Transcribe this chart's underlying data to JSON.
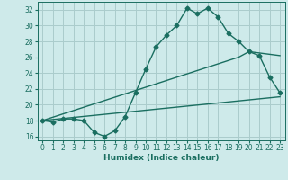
{
  "xlabel": "Humidex (Indice chaleur)",
  "bg_color": "#ceeaea",
  "grid_color": "#aacccc",
  "line_color": "#1a6e60",
  "xlim": [
    -0.5,
    23.5
  ],
  "ylim": [
    15.5,
    33.0
  ],
  "xticks": [
    0,
    1,
    2,
    3,
    4,
    5,
    6,
    7,
    8,
    9,
    10,
    11,
    12,
    13,
    14,
    15,
    16,
    17,
    18,
    19,
    20,
    21,
    22,
    23
  ],
  "yticks": [
    16,
    18,
    20,
    22,
    24,
    26,
    28,
    30,
    32
  ],
  "series1_x": [
    0,
    1,
    2,
    3,
    4,
    5,
    6,
    7,
    8,
    9,
    10,
    11,
    12,
    13,
    14,
    15,
    16,
    17,
    18,
    19,
    20,
    21,
    22,
    23
  ],
  "series1_y": [
    18.0,
    17.8,
    18.2,
    18.2,
    18.0,
    16.5,
    16.0,
    16.7,
    18.5,
    21.5,
    24.5,
    27.3,
    28.8,
    30.0,
    32.2,
    31.5,
    32.2,
    31.1,
    29.0,
    28.0,
    26.7,
    26.2,
    23.5,
    21.5
  ],
  "series2_x": [
    0,
    19,
    20,
    23
  ],
  "series2_y": [
    18.0,
    26.0,
    26.7,
    26.2
  ],
  "series3_x": [
    0,
    23
  ],
  "series3_y": [
    18.0,
    21.0
  ],
  "marker": "D",
  "markersize": 2.5,
  "linewidth": 1.0,
  "tick_fontsize": 5.5,
  "xlabel_fontsize": 6.5
}
